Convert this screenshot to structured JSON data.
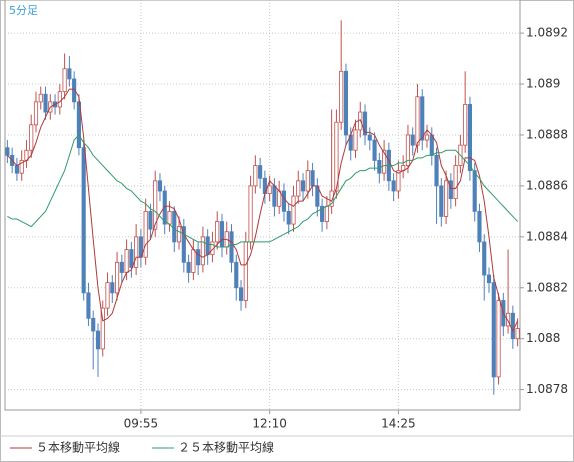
{
  "chart_data": {
    "type": "candlestick",
    "title": "5分足",
    "categories": [
      null,
      null,
      null,
      null,
      null,
      null,
      null,
      null,
      null,
      null,
      null,
      null,
      null,
      null,
      null,
      null,
      null,
      null,
      null,
      null,
      null,
      null,
      null,
      null,
      null,
      null,
      null,
      null,
      "09:55",
      null,
      null,
      null,
      null,
      null,
      null,
      null,
      null,
      null,
      null,
      null,
      null,
      null,
      null,
      null,
      null,
      null,
      null,
      null,
      null,
      null,
      null,
      null,
      null,
      null,
      null,
      "12:10",
      null,
      null,
      null,
      null,
      null,
      null,
      null,
      null,
      null,
      null,
      null,
      null,
      null,
      null,
      null,
      null,
      null,
      null,
      null,
      null,
      null,
      null,
      null,
      null,
      null,
      null,
      "14:25",
      null,
      null,
      null,
      null,
      null,
      null,
      null,
      null,
      null,
      null,
      null,
      null,
      null,
      null,
      null,
      null,
      null,
      null,
      null,
      null,
      null,
      null,
      null,
      null,
      null
    ],
    "open": [
      1.08875,
      1.08872,
      1.08868,
      1.08865,
      1.0887,
      1.08874,
      1.08884,
      1.08893,
      1.08896,
      1.08889,
      1.08893,
      1.08891,
      1.08897,
      1.08906,
      1.08902,
      1.08893,
      1.08875,
      1.08818,
      1.08808,
      1.08803,
      1.08796,
      1.08812,
      1.08822,
      1.08818,
      1.0883,
      1.08826,
      1.08835,
      1.08828,
      1.0884,
      1.08832,
      1.0885,
      1.08843,
      1.08862,
      1.08858,
      1.08845,
      1.0885,
      1.08838,
      1.08844,
      1.0883,
      1.08826,
      1.08835,
      1.08829,
      1.0884,
      1.08833,
      1.08838,
      1.08846,
      1.08836,
      1.08842,
      1.0883,
      1.0882,
      1.08815,
      1.08838,
      1.0886,
      1.08868,
      1.08863,
      1.08857,
      1.0886,
      1.08852,
      1.08858,
      1.0885,
      1.08845,
      1.08856,
      1.08862,
      1.08858,
      1.08866,
      1.0886,
      1.08852,
      1.08846,
      1.08852,
      1.08858,
      1.08885,
      1.08905,
      1.0888,
      1.08874,
      1.08882,
      1.08889,
      1.0888,
      1.08878,
      1.0887,
      1.08865,
      1.08874,
      1.08862,
      1.08858,
      1.08866,
      1.08868,
      1.0888,
      1.08876,
      1.08895,
      1.08878,
      1.0888,
      1.08872,
      1.0886,
      1.08848,
      1.08862,
      1.08855,
      1.08868,
      1.08876,
      1.08892,
      1.08866,
      1.0885,
      1.08838,
      1.08825,
      1.08822,
      1.08785,
      1.08815,
      1.08805,
      1.0881,
      1.088
    ],
    "high": [
      1.08878,
      1.08875,
      1.08871,
      1.08874,
      1.08878,
      1.08888,
      1.08897,
      1.08899,
      1.08899,
      1.08896,
      1.08896,
      1.089,
      1.08912,
      1.08911,
      1.08905,
      1.08896,
      1.08878,
      1.08822,
      1.08811,
      1.08806,
      1.08815,
      1.08826,
      1.08825,
      1.08834,
      1.08833,
      1.08839,
      1.08838,
      1.08845,
      1.08843,
      1.08855,
      1.08853,
      1.08866,
      1.08865,
      1.0886,
      1.08854,
      1.08852,
      1.08848,
      1.08847,
      1.08833,
      1.08839,
      1.08838,
      1.08844,
      1.08843,
      1.08842,
      1.0885,
      1.08849,
      1.08846,
      1.08845,
      1.08833,
      1.08823,
      1.08842,
      1.08864,
      1.08872,
      1.08871,
      1.08866,
      1.08864,
      1.08863,
      1.08862,
      1.08861,
      1.08853,
      1.0886,
      1.08866,
      1.08865,
      1.0887,
      1.08869,
      1.08863,
      1.08855,
      1.08856,
      1.0889,
      1.0889,
      1.08925,
      1.08908,
      1.08883,
      1.08886,
      1.08893,
      1.08892,
      1.08883,
      1.08881,
      1.08873,
      1.08878,
      1.08877,
      1.08865,
      1.0887,
      1.08872,
      1.08884,
      1.08883,
      1.089,
      1.08898,
      1.08884,
      1.08883,
      1.08875,
      1.08863,
      1.08866,
      1.08865,
      1.08872,
      1.0888,
      1.08905,
      1.08895,
      1.08869,
      1.08853,
      1.08841,
      1.08828,
      1.08825,
      1.08818,
      1.08818,
      1.08835,
      1.08813,
      1.08808
    ],
    "low": [
      1.08869,
      1.08865,
      1.08862,
      1.08862,
      1.08867,
      1.08871,
      1.08881,
      1.0889,
      1.08886,
      1.08886,
      1.08888,
      1.08888,
      1.08894,
      1.08899,
      1.0889,
      1.08872,
      1.08815,
      1.08805,
      1.08788,
      1.08785,
      1.08793,
      1.08809,
      1.08814,
      1.08815,
      1.08822,
      1.08823,
      1.08824,
      1.08825,
      1.08828,
      1.08829,
      1.08839,
      1.0884,
      1.08854,
      1.08841,
      1.08842,
      1.08834,
      1.08835,
      1.08826,
      1.08822,
      1.08823,
      1.08825,
      1.08826,
      1.08829,
      1.0883,
      1.08835,
      1.08832,
      1.08833,
      1.08826,
      1.08815,
      1.08811,
      1.08812,
      1.08835,
      1.08857,
      1.08859,
      1.08853,
      1.08854,
      1.08848,
      1.08849,
      1.08846,
      1.08841,
      1.08842,
      1.08853,
      1.08854,
      1.08855,
      1.08856,
      1.08848,
      1.08842,
      1.08843,
      1.08849,
      1.08855,
      1.08882,
      1.08876,
      1.0887,
      1.08871,
      1.08879,
      1.08876,
      1.08874,
      1.08866,
      1.08861,
      1.08862,
      1.08858,
      1.08854,
      1.08855,
      1.08863,
      1.08865,
      1.08872,
      1.08873,
      1.08874,
      1.08875,
      1.08868,
      1.08845,
      1.08844,
      1.08845,
      1.08851,
      1.08852,
      1.08865,
      1.08873,
      1.08862,
      1.08846,
      1.08834,
      1.08815,
      1.08818,
      1.08778,
      1.08782,
      1.08801,
      1.08802,
      1.08796,
      1.08797
    ],
    "close": [
      1.08872,
      1.08868,
      1.08865,
      1.0887,
      1.08874,
      1.08884,
      1.08893,
      1.08896,
      1.08889,
      1.08893,
      1.08891,
      1.08897,
      1.08906,
      1.08902,
      1.08893,
      1.08875,
      1.08818,
      1.08808,
      1.08803,
      1.08796,
      1.08812,
      1.08822,
      1.08818,
      1.0883,
      1.08826,
      1.08835,
      1.08828,
      1.0884,
      1.08832,
      1.0885,
      1.08843,
      1.08862,
      1.08858,
      1.08845,
      1.0885,
      1.08838,
      1.08844,
      1.0883,
      1.08826,
      1.08835,
      1.08829,
      1.0884,
      1.08833,
      1.08838,
      1.08846,
      1.08836,
      1.08842,
      1.0883,
      1.0882,
      1.08815,
      1.08838,
      1.0886,
      1.08868,
      1.08863,
      1.08857,
      1.0886,
      1.08852,
      1.08858,
      1.0885,
      1.08845,
      1.08856,
      1.08862,
      1.08858,
      1.08866,
      1.0886,
      1.08852,
      1.08846,
      1.08852,
      1.08858,
      1.08885,
      1.08905,
      1.0888,
      1.08874,
      1.08882,
      1.08889,
      1.0888,
      1.08878,
      1.0887,
      1.08865,
      1.08874,
      1.08862,
      1.08858,
      1.08866,
      1.08868,
      1.0888,
      1.08876,
      1.08895,
      1.08878,
      1.0888,
      1.08872,
      1.0886,
      1.08848,
      1.08862,
      1.08855,
      1.08868,
      1.08876,
      1.08892,
      1.08866,
      1.0885,
      1.08838,
      1.08825,
      1.08822,
      1.08785,
      1.08815,
      1.08805,
      1.0881,
      1.088,
      1.08804
    ],
    "up_color": "#c0504d",
    "down_color": "#4f81b9",
    "series": [
      {
        "name": "５本移動平均線",
        "color": "#b03a3a",
        "values": [
          1.08872,
          1.0887,
          1.08868,
          1.08869,
          1.0887,
          1.08872,
          1.08877,
          1.08883,
          1.08887,
          1.08891,
          1.08892,
          1.08893,
          1.08895,
          1.08898,
          1.08898,
          1.08895,
          1.08879,
          1.08859,
          1.08839,
          1.0882,
          1.08807,
          1.08808,
          1.0881,
          1.08816,
          1.08822,
          1.08826,
          1.08827,
          1.08832,
          1.08832,
          1.08837,
          1.08839,
          1.08845,
          1.08849,
          1.08852,
          1.08852,
          1.08851,
          1.08847,
          1.08841,
          1.08838,
          1.08835,
          1.08833,
          1.08832,
          1.08833,
          1.08835,
          1.08837,
          1.08839,
          1.08839,
          1.08838,
          1.08835,
          1.08829,
          1.08829,
          1.08833,
          1.0884,
          1.08849,
          1.08857,
          1.08862,
          1.0886,
          1.08858,
          1.08855,
          1.08853,
          1.08852,
          1.08854,
          1.08854,
          1.08857,
          1.0886,
          1.0886,
          1.08856,
          1.08855,
          1.08854,
          1.08859,
          1.08869,
          1.08876,
          1.0888,
          1.08885,
          1.08886,
          1.08881,
          1.08881,
          1.0888,
          1.08876,
          1.08873,
          1.0887,
          1.08866,
          1.08865,
          1.08866,
          1.08867,
          1.0887,
          1.08877,
          1.08879,
          1.08882,
          1.0888,
          1.08877,
          1.08868,
          1.08864,
          1.08859,
          1.08859,
          1.08862,
          1.08871,
          1.08871,
          1.0887,
          1.08864,
          1.08854,
          1.0884,
          1.08824,
          1.08817,
          1.0881,
          1.08807,
          1.08803,
          1.08807
        ]
      },
      {
        "name": "２５本移動平均線",
        "color": "#2e9b6a",
        "values": [
          1.08848,
          1.08847,
          1.08847,
          1.08846,
          1.08845,
          1.08844,
          1.08846,
          1.08848,
          1.0885,
          1.08854,
          1.08858,
          1.08862,
          1.08866,
          1.08872,
          1.08878,
          1.0888,
          1.08877,
          1.08875,
          1.08872,
          1.0887,
          1.08868,
          1.08866,
          1.08864,
          1.08862,
          1.08861,
          1.08859,
          1.08858,
          1.08856,
          1.08854,
          1.08853,
          1.08851,
          1.0885,
          1.08848,
          1.08846,
          1.08845,
          1.08843,
          1.08842,
          1.08841,
          1.0884,
          1.08839,
          1.08838,
          1.08838,
          1.08837,
          1.08837,
          1.08836,
          1.08836,
          1.08836,
          1.08837,
          1.08837,
          1.08838,
          1.08838,
          1.08838,
          1.08838,
          1.08838,
          1.08838,
          1.08838,
          1.08839,
          1.0884,
          1.08841,
          1.08842,
          1.08843,
          1.08844,
          1.08846,
          1.08847,
          1.08849,
          1.0885,
          1.08851,
          1.08852,
          1.08853,
          1.08856,
          1.08859,
          1.08862,
          1.08863,
          1.08865,
          1.08866,
          1.08866,
          1.08867,
          1.08867,
          1.08867,
          1.08868,
          1.08868,
          1.08868,
          1.08869,
          1.08869,
          1.0887,
          1.0887,
          1.08871,
          1.08871,
          1.08872,
          1.08872,
          1.08873,
          1.08873,
          1.08874,
          1.08874,
          1.08874,
          1.08872,
          1.0887,
          1.08868,
          1.08865,
          1.08863,
          1.0886,
          1.08858,
          1.08856,
          1.08854,
          1.08852,
          1.0885,
          1.08848,
          1.08846
        ]
      }
    ],
    "ylim": [
      1.08772,
      1.08933
    ],
    "yticks": [
      1.0878,
      1.088,
      1.0882,
      1.0884,
      1.0886,
      1.0888,
      1.089,
      1.0892
    ],
    "grid": true
  }
}
